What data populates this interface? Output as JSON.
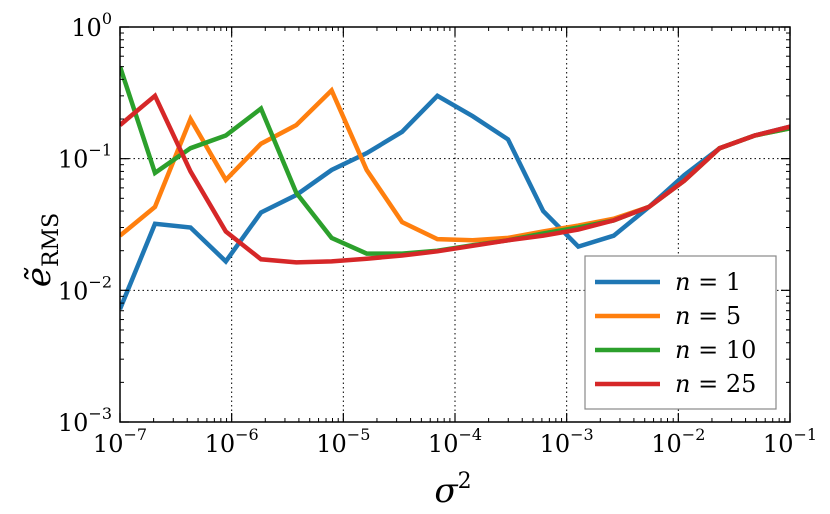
{
  "chart_data": {
    "type": "line",
    "title": "",
    "xlabel": "σ",
    "xlabel_sup": "2",
    "ylabel": "ẽ",
    "ylabel_sub": "RMS",
    "xscale": "log",
    "yscale": "log",
    "xlim": [
      1e-07,
      0.1
    ],
    "ylim": [
      0.001,
      1
    ],
    "grid": true,
    "legend_position": "bottom-right",
    "x_ticks": [
      {
        "base": "10",
        "exp": "−7"
      },
      {
        "base": "10",
        "exp": "−6"
      },
      {
        "base": "10",
        "exp": "−5"
      },
      {
        "base": "10",
        "exp": "−4"
      },
      {
        "base": "10",
        "exp": "−3"
      },
      {
        "base": "10",
        "exp": "−2"
      },
      {
        "base": "10",
        "exp": "−1"
      }
    ],
    "y_ticks": [
      {
        "base": "10",
        "exp": "−3"
      },
      {
        "base": "10",
        "exp": "−2"
      },
      {
        "base": "10",
        "exp": "−1"
      },
      {
        "base": "10",
        "exp": "0"
      }
    ],
    "x": [
      1e-07,
      2.06e-07,
      4.28e-07,
      8.86e-07,
      1.83e-06,
      3.79e-06,
      7.85e-06,
      1.62e-05,
      3.36e-05,
      6.95e-05,
      0.000144,
      0.000298,
      0.000616,
      0.00127,
      0.00264,
      0.00546,
      0.0113,
      0.0234,
      0.0483,
      0.1
    ],
    "series": [
      {
        "name": "n = 1",
        "color": "#1f77b4",
        "values": [
          0.0072,
          0.032,
          0.03,
          0.0166,
          0.039,
          0.053,
          0.082,
          0.11,
          0.16,
          0.3,
          0.21,
          0.14,
          0.04,
          0.0215,
          0.026,
          0.043,
          0.075,
          0.12,
          0.15,
          0.175
        ]
      },
      {
        "name": "n = 5",
        "color": "#ff7f0e",
        "values": [
          0.026,
          0.043,
          0.2,
          0.069,
          0.13,
          0.18,
          0.33,
          0.082,
          0.033,
          0.0245,
          0.024,
          0.025,
          0.028,
          0.031,
          0.035,
          0.043,
          0.068,
          0.12,
          0.15,
          0.17
        ]
      },
      {
        "name": "n = 10",
        "color": "#2ca02c",
        "values": [
          0.5,
          0.078,
          0.12,
          0.15,
          0.24,
          0.055,
          0.025,
          0.019,
          0.019,
          0.02,
          0.022,
          0.024,
          0.027,
          0.03,
          0.034,
          0.043,
          0.068,
          0.12,
          0.15,
          0.17
        ]
      },
      {
        "name": "n = 25",
        "color": "#d62728",
        "values": [
          0.18,
          0.3,
          0.08,
          0.028,
          0.0172,
          0.0163,
          0.0166,
          0.0174,
          0.0184,
          0.0198,
          0.0218,
          0.024,
          0.026,
          0.029,
          0.034,
          0.043,
          0.068,
          0.12,
          0.15,
          0.175
        ]
      }
    ]
  }
}
